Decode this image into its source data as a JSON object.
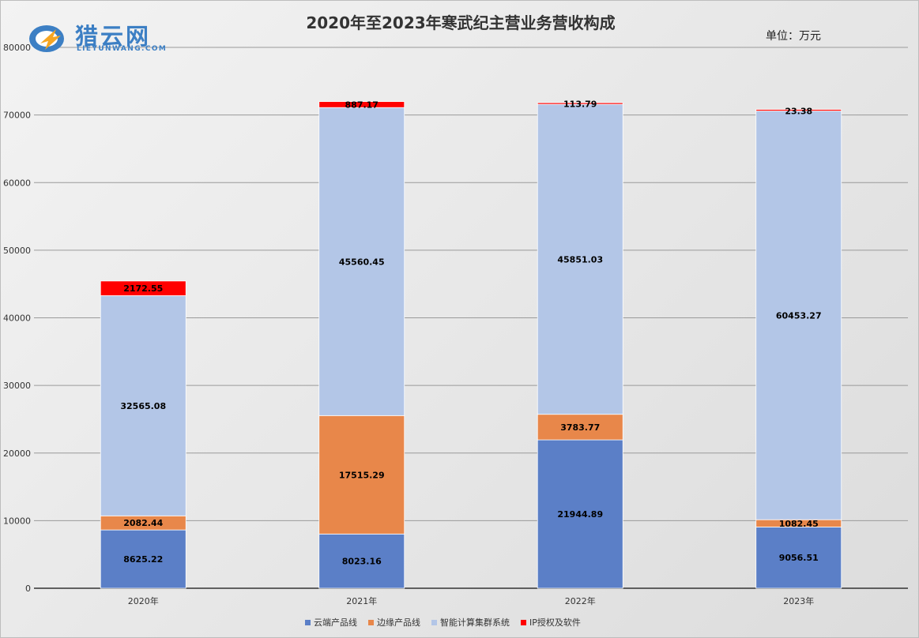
{
  "logo": {
    "text": "猎云网",
    "subtext": "LIEYUNWANG.COM"
  },
  "unit_label": "单位：万元",
  "colors": {
    "cloud": "#5b7fc7",
    "edge": "#e8874a",
    "cluster": "#b3c6e7",
    "ip": "#ff0000"
  },
  "chart_data": {
    "type": "bar",
    "stacked": true,
    "title": "2020年至2023年寒武纪主营业务营收构成",
    "categories": [
      "2020年",
      "2021年",
      "2022年",
      "2023年"
    ],
    "ylim": [
      0,
      80000
    ],
    "yticks": [
      0,
      10000,
      20000,
      30000,
      40000,
      50000,
      60000,
      70000,
      80000
    ],
    "grid": true,
    "legend_position": "bottom",
    "series": [
      {
        "name": "云端产品线",
        "color": "#5b7fc7",
        "values": [
          8625.22,
          8023.16,
          21944.89,
          9056.51
        ]
      },
      {
        "name": "边缘产品线",
        "color": "#e8874a",
        "values": [
          2082.44,
          17515.29,
          3783.77,
          1082.45
        ]
      },
      {
        "name": "智能计算集群系统",
        "color": "#b3c6e7",
        "values": [
          32565.08,
          45560.45,
          45851.03,
          60453.27
        ]
      },
      {
        "name": "IP授权及软件",
        "color": "#ff0000",
        "values": [
          2172.55,
          887.17,
          113.79,
          23.38
        ]
      }
    ]
  }
}
